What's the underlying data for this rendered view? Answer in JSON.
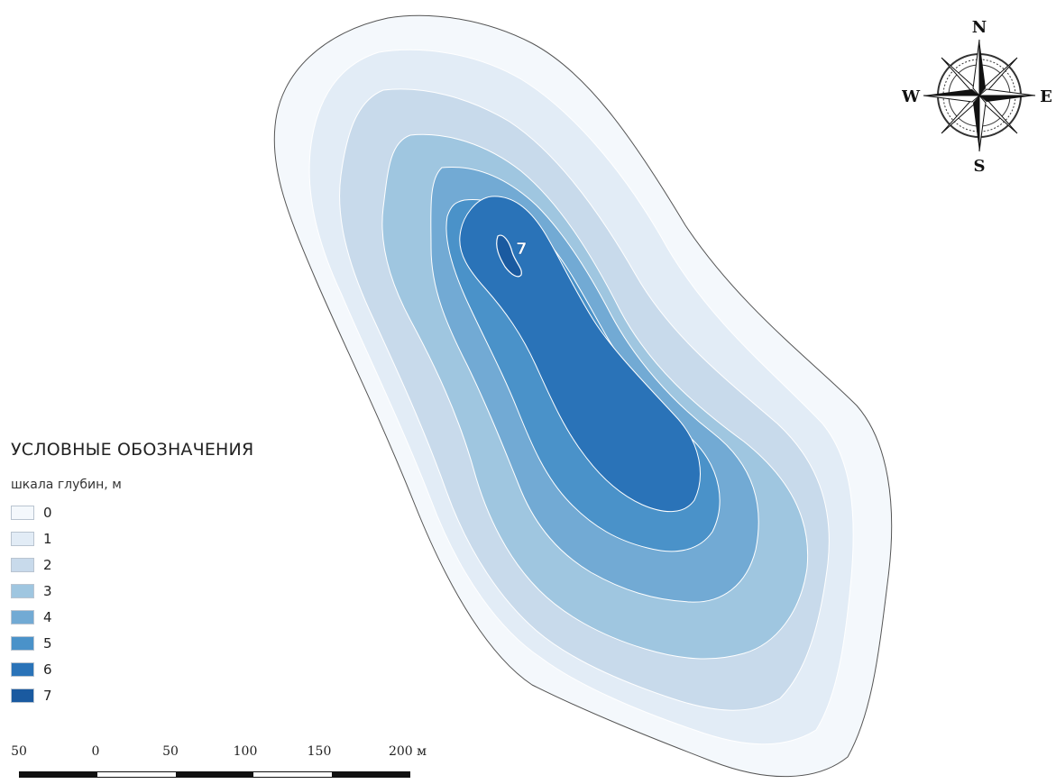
{
  "legend": {
    "title": "УСЛОВНЫЕ ОБОЗНАЧЕНИЯ",
    "subtitle": "шкала глубин, м",
    "items": [
      {
        "label": "0",
        "color": "#f4f8fc"
      },
      {
        "label": "1",
        "color": "#e2ecf6"
      },
      {
        "label": "2",
        "color": "#c8daeb"
      },
      {
        "label": "3",
        "color": "#9fc6e0"
      },
      {
        "label": "4",
        "color": "#72aad4"
      },
      {
        "label": "5",
        "color": "#4a92c9"
      },
      {
        "label": "6",
        "color": "#2a73b8"
      },
      {
        "label": "7",
        "color": "#1a5aa0"
      }
    ]
  },
  "map": {
    "depth_label": "7",
    "outline_color": "#555555"
  },
  "compass": {
    "north": "N",
    "south": "S",
    "east": "E",
    "west": "W"
  },
  "scale": {
    "ticks": [
      "50",
      "0",
      "50",
      "100",
      "150",
      "200 м"
    ]
  }
}
